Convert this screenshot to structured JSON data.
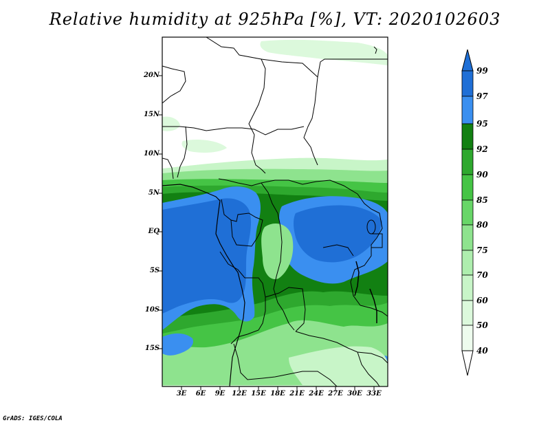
{
  "title": "Relative humidity at 925hPa [%], VT: 2020102603",
  "credit": "GrADS: IGES/COLA",
  "map": {
    "lat_labels": [
      "20N",
      "15N",
      "10N",
      "5N",
      "EQ",
      "5S",
      "10S",
      "15S"
    ],
    "lon_labels": [
      "3E",
      "6E",
      "9E",
      "12E",
      "15E",
      "18E",
      "21E",
      "24E",
      "27E",
      "30E",
      "33E"
    ]
  },
  "colorbar": {
    "labels": [
      "99",
      "97",
      "95",
      "92",
      "90",
      "85",
      "80",
      "75",
      "70",
      "60",
      "50",
      "40"
    ],
    "colors": [
      "#1f6fd6",
      "#3a8ff0",
      "#128012",
      "#2ea82e",
      "#45c445",
      "#68d668",
      "#8ee38e",
      "#aeeeae",
      "#c8f5c8",
      "#dcf9dc",
      "#eefcee",
      "#ffffff"
    ]
  },
  "palette": {
    "blue_dark": "#1f6fd6",
    "blue_light": "#3a8ff0",
    "green_dark": "#128012",
    "green_mid": "#2ea82e",
    "green_light": "#8ee38e",
    "green_pale": "#dcf9dc",
    "border": "#000000"
  }
}
